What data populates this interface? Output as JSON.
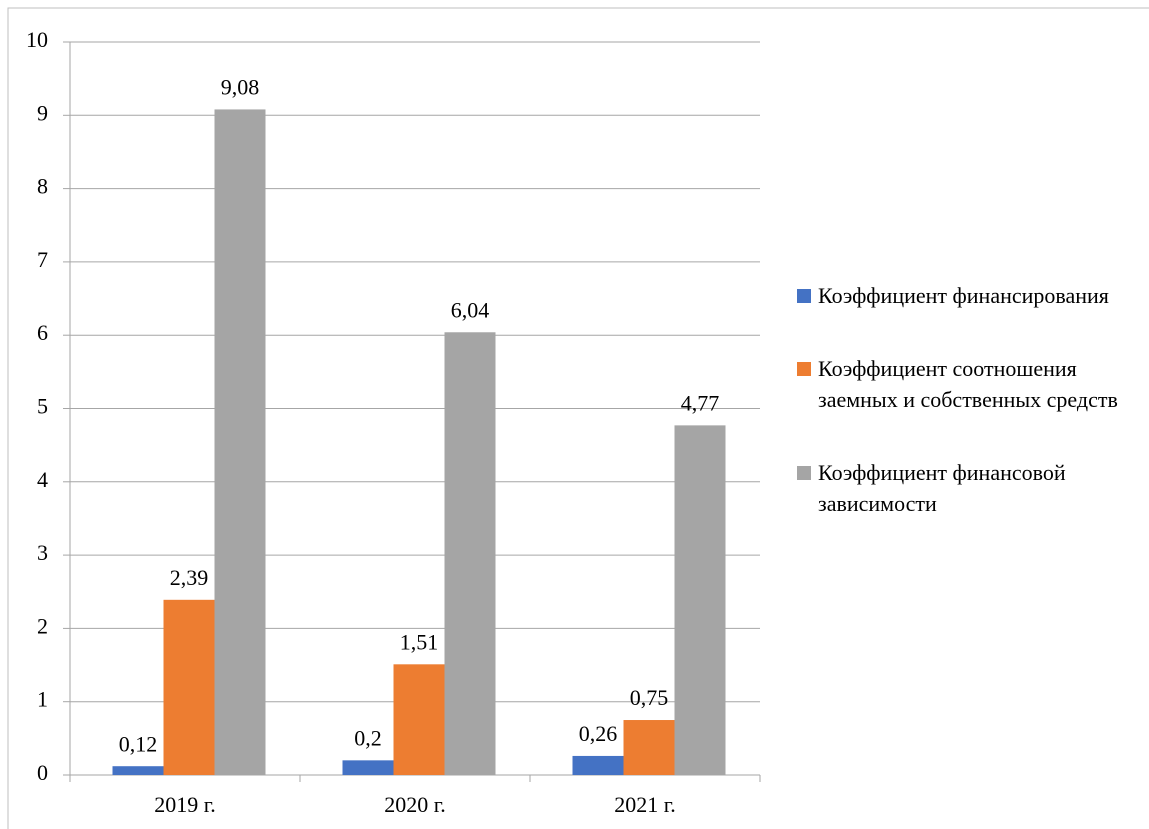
{
  "chart_data": {
    "type": "bar",
    "categories": [
      "2019 г.",
      "2020 г.",
      "2021 г."
    ],
    "series": [
      {
        "name": "Коэффициент финансирования",
        "color": "#4472c4",
        "values": [
          0.12,
          0.2,
          0.26
        ],
        "value_labels": [
          "0,12",
          "0,2",
          "0,26"
        ]
      },
      {
        "name": "Коэффициент соотношения заемных и собственных средств",
        "color": "#ed7d31",
        "values": [
          2.39,
          1.51,
          0.75
        ],
        "value_labels": [
          "2,39",
          "1,51",
          "0,75"
        ]
      },
      {
        "name": "Коэффициент финансовой зависимости",
        "color": "#a5a5a5",
        "values": [
          9.08,
          6.04,
          4.77
        ],
        "value_labels": [
          "9,08",
          "6,04",
          "4,77"
        ]
      }
    ],
    "ylim": [
      0,
      10
    ],
    "yticks": [
      0,
      1,
      2,
      3,
      4,
      5,
      6,
      7,
      8,
      9,
      10
    ],
    "grid": true,
    "legend": "right"
  }
}
